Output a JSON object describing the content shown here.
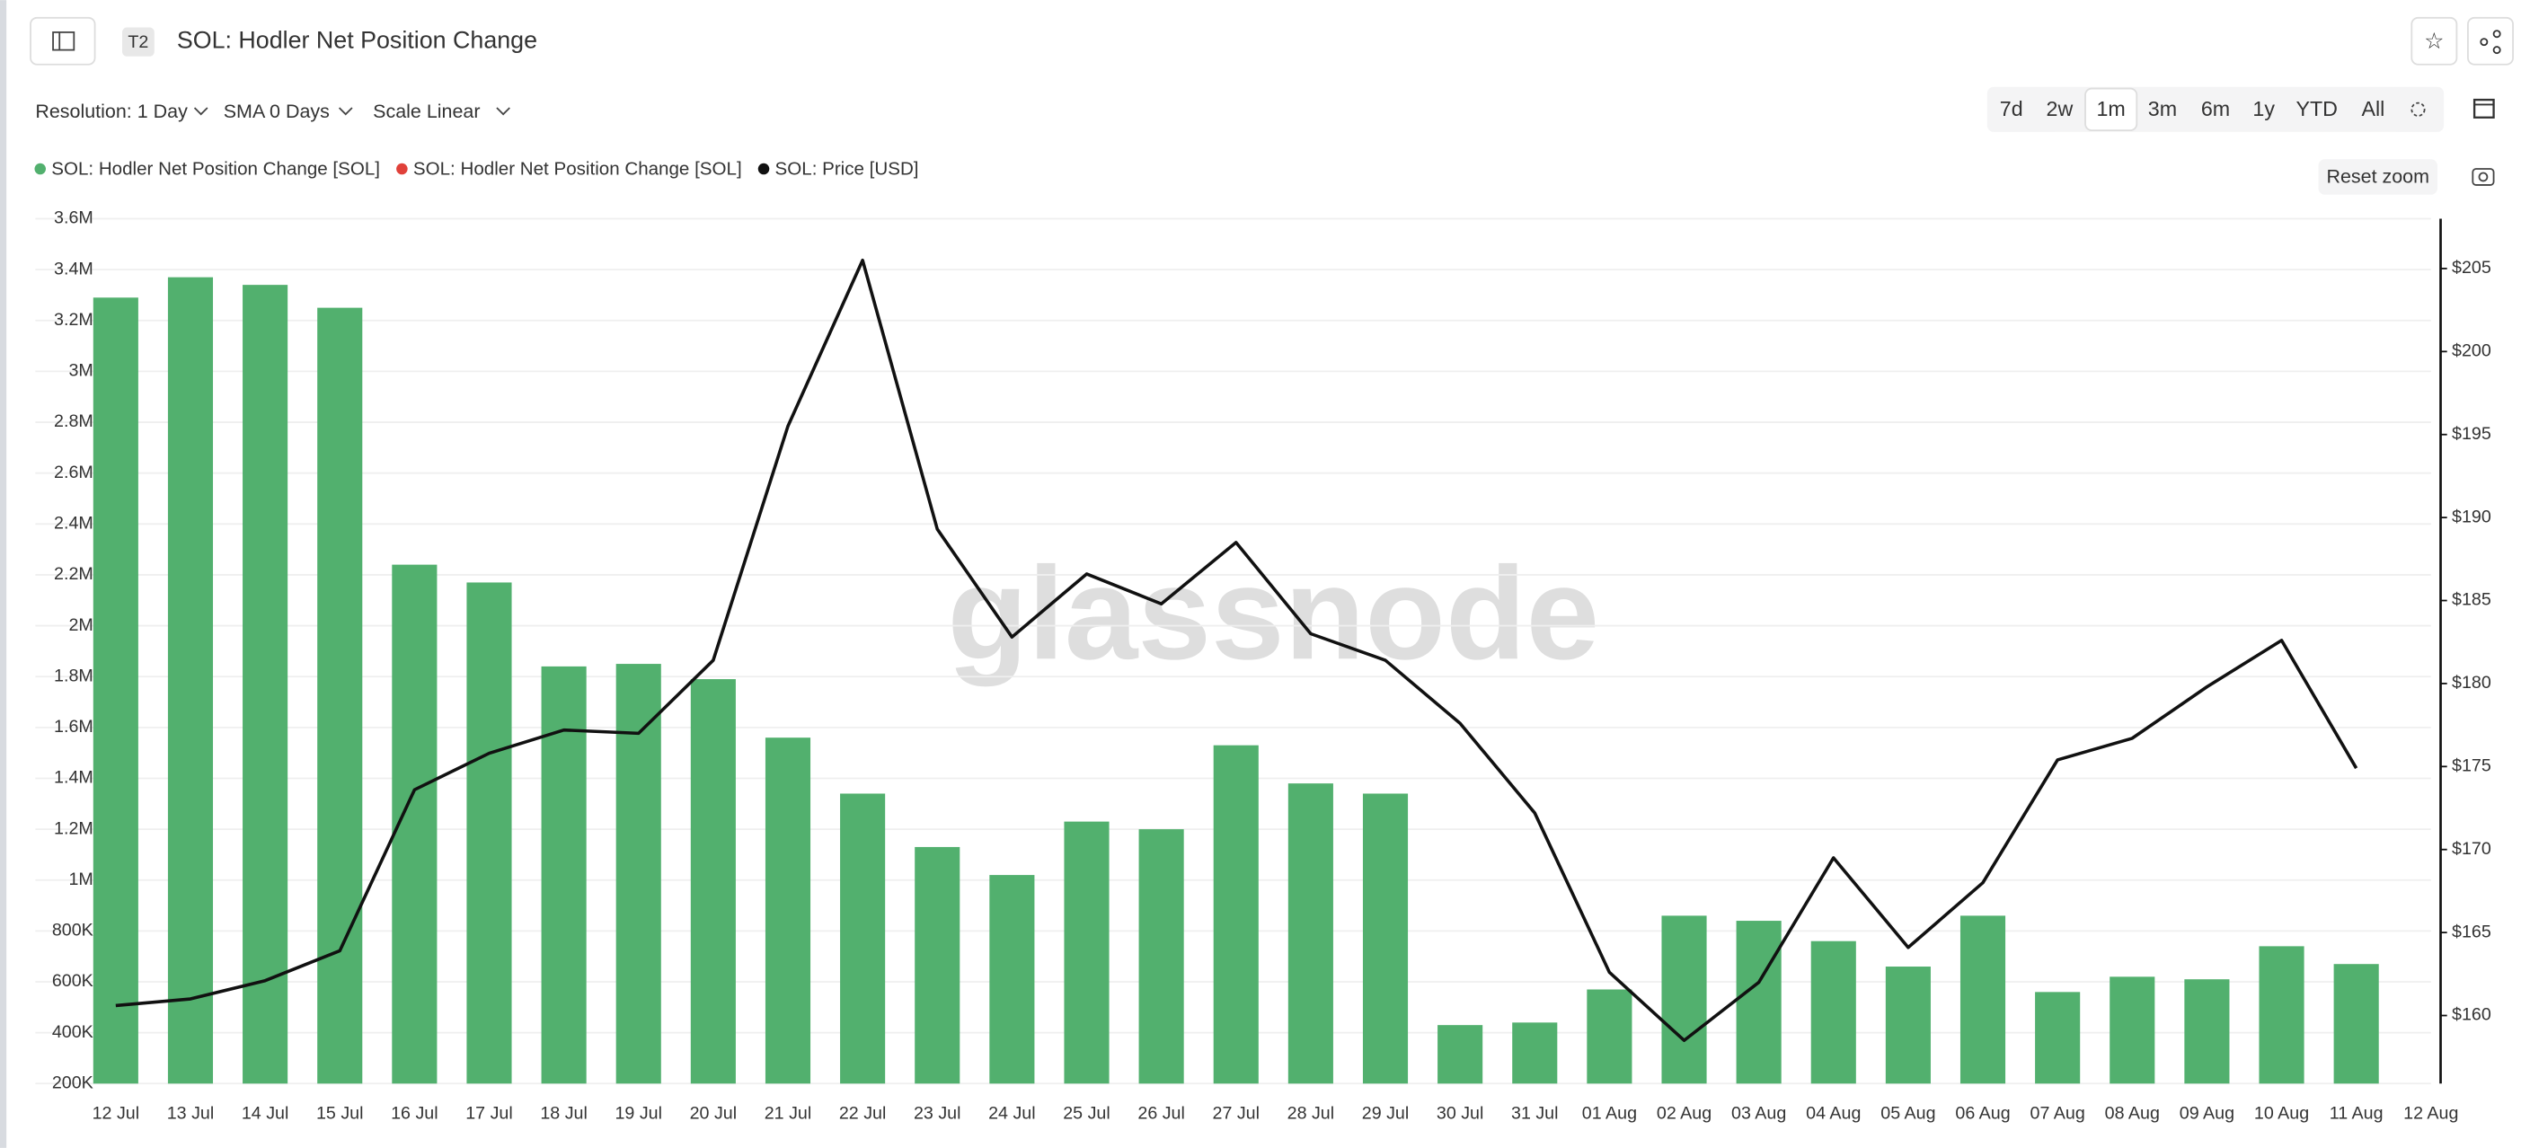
{
  "ui": {
    "badge": "T2",
    "title": "SOL: Hodler Net Position Change",
    "controls": [
      "Resolution: 1 Day",
      "SMA 0 Days",
      "Scale Linear"
    ],
    "ranges": [
      "7d",
      "2w",
      "1m",
      "3m",
      "6m",
      "1y",
      "YTD",
      "All"
    ],
    "active_range": "1m",
    "reset": "Reset zoom",
    "watermark": "glassnode"
  },
  "chart_data": {
    "type": "bar",
    "categories": [
      "12 Jul",
      "13 Jul",
      "14 Jul",
      "15 Jul",
      "16 Jul",
      "17 Jul",
      "18 Jul",
      "19 Jul",
      "20 Jul",
      "21 Jul",
      "22 Jul",
      "23 Jul",
      "24 Jul",
      "25 Jul",
      "26 Jul",
      "27 Jul",
      "28 Jul",
      "29 Jul",
      "30 Jul",
      "31 Jul",
      "01 Aug",
      "02 Aug",
      "03 Aug",
      "04 Aug",
      "05 Aug",
      "06 Aug",
      "07 Aug",
      "08 Aug",
      "09 Aug",
      "10 Aug",
      "11 Aug",
      "12 Aug"
    ],
    "series": [
      {
        "name": "SOL: Hodler Net Position Change [SOL]",
        "type": "bar",
        "color": "#52b06e",
        "values": [
          3290000,
          3370000,
          3340000,
          3250000,
          2240000,
          2170000,
          1840000,
          1850000,
          1790000,
          1560000,
          1340000,
          1130000,
          1020000,
          1230000,
          1200000,
          1530000,
          1380000,
          1340000,
          430000,
          440000,
          570000,
          860000,
          840000,
          760000,
          660000,
          860000,
          560000,
          620000,
          610000,
          740000,
          670000,
          null
        ]
      },
      {
        "name": "SOL: Hodler Net Position Change [SOL]",
        "type": "bar",
        "color": "#e0413a",
        "values": [
          null,
          null,
          null,
          null,
          null,
          null,
          null,
          null,
          null,
          null,
          null,
          null,
          null,
          null,
          null,
          null,
          null,
          null,
          null,
          null,
          null,
          null,
          null,
          null,
          null,
          null,
          null,
          null,
          null,
          null,
          null,
          null
        ]
      },
      {
        "name": "SOL: Price [USD]",
        "type": "line",
        "axis": "y2",
        "color": "#111111",
        "values": [
          160.6,
          161.0,
          162.1,
          163.9,
          173.6,
          175.8,
          177.2,
          177.0,
          181.4,
          195.5,
          205.5,
          189.3,
          182.8,
          186.6,
          184.8,
          188.5,
          183.0,
          181.4,
          177.6,
          172.2,
          162.6,
          158.5,
          162.0,
          169.5,
          164.1,
          168.0,
          175.4,
          176.7,
          179.8,
          182.6,
          174.9,
          null
        ]
      }
    ],
    "ylim": [
      200000,
      3600000
    ],
    "yticks": [
      {
        "value": 200000,
        "label": "200K"
      },
      {
        "value": 400000,
        "label": "400K"
      },
      {
        "value": 600000,
        "label": "600K"
      },
      {
        "value": 800000,
        "label": "800K"
      },
      {
        "value": 1000000,
        "label": "1M"
      },
      {
        "value": 1200000,
        "label": "1.2M"
      },
      {
        "value": 1400000,
        "label": "1.4M"
      },
      {
        "value": 1600000,
        "label": "1.6M"
      },
      {
        "value": 1800000,
        "label": "1.8M"
      },
      {
        "value": 2000000,
        "label": "2M"
      },
      {
        "value": 2200000,
        "label": "2.2M"
      },
      {
        "value": 2400000,
        "label": "2.4M"
      },
      {
        "value": 2600000,
        "label": "2.6M"
      },
      {
        "value": 2800000,
        "label": "2.8M"
      },
      {
        "value": 3000000,
        "label": "3M"
      },
      {
        "value": 3200000,
        "label": "3.2M"
      },
      {
        "value": 3400000,
        "label": "3.4M"
      },
      {
        "value": 3600000,
        "label": "3.6M"
      }
    ],
    "y2lim": [
      155.9,
      208
    ],
    "y2ticks": [
      {
        "value": 160,
        "label": "$160"
      },
      {
        "value": 165,
        "label": "$165"
      },
      {
        "value": 170,
        "label": "$170"
      },
      {
        "value": 175,
        "label": "$175"
      },
      {
        "value": 180,
        "label": "$180"
      },
      {
        "value": 185,
        "label": "$185"
      },
      {
        "value": 190,
        "label": "$190"
      },
      {
        "value": 195,
        "label": "$195"
      },
      {
        "value": 200,
        "label": "$200"
      },
      {
        "value": 205,
        "label": "$205"
      }
    ],
    "grid": true
  }
}
